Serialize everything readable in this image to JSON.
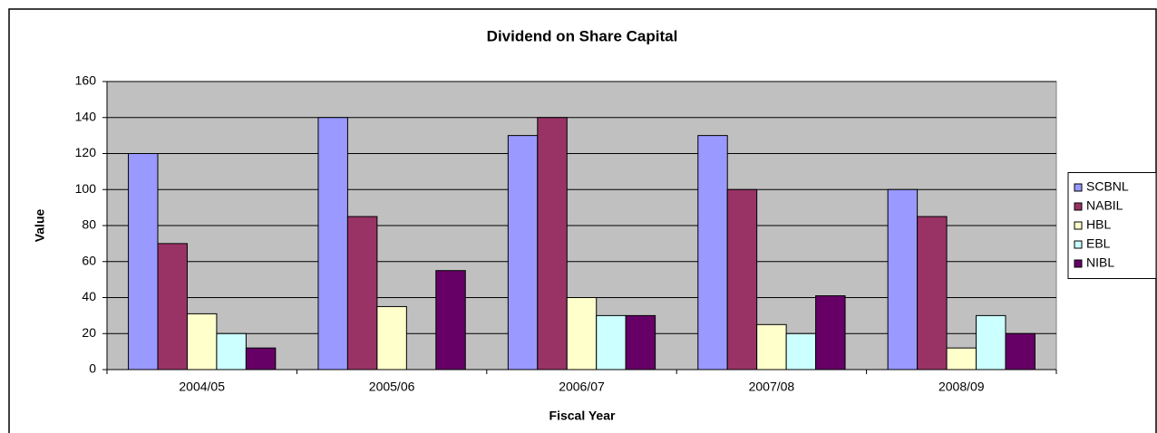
{
  "chart_data": {
    "type": "bar",
    "title": "Dividend on Share Capital",
    "x_label": "Fiscal Year",
    "y_label": "Value",
    "categories": [
      "2004/05",
      "2005/06",
      "2006/07",
      "2007/08",
      "2008/09"
    ],
    "series": [
      {
        "name": "SCBNL",
        "color": "#9999ff",
        "values": [
          120,
          140,
          130,
          130,
          100
        ]
      },
      {
        "name": "NABIL",
        "color": "#993366",
        "values": [
          70,
          85,
          140,
          100,
          85
        ]
      },
      {
        "name": "HBL",
        "color": "#ffffcc",
        "values": [
          31,
          35,
          40,
          25,
          12
        ]
      },
      {
        "name": "EBL",
        "color": "#ccffff",
        "values": [
          20,
          null,
          30,
          20,
          30
        ]
      },
      {
        "name": "NIBL",
        "color": "#660066",
        "values": [
          12,
          55,
          30,
          41,
          20
        ]
      }
    ],
    "ylim": [
      0,
      160
    ],
    "yticks": [
      0,
      20,
      40,
      60,
      80,
      100,
      120,
      140,
      160
    ],
    "grid": true,
    "legend": "right",
    "plot_background": "#c0c0c0"
  }
}
